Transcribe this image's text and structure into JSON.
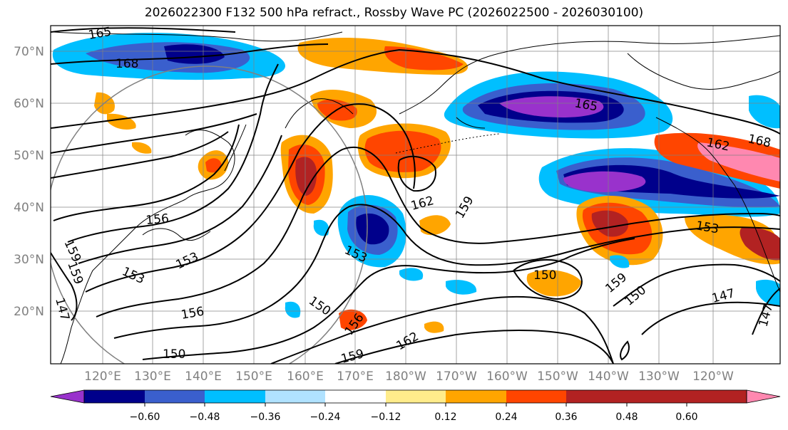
{
  "title": "2026022300 F132 500 hPa refract., Rossby Wave PC (2026022500 - 2026030100)",
  "map": {
    "lat_labels": [
      "70°N",
      "60°N",
      "50°N",
      "40°N",
      "30°N",
      "20°N"
    ],
    "lon_labels": [
      "120°E",
      "130°E",
      "140°E",
      "150°E",
      "160°E",
      "170°E",
      "180°W",
      "170°W",
      "160°W",
      "150°W",
      "140°W",
      "130°W",
      "120°W"
    ],
    "contour_labels": [
      "165",
      "168",
      "165",
      "162",
      "168",
      "162",
      "159",
      "156",
      "153",
      "159",
      "153",
      "153",
      "150",
      "159",
      "150",
      "147",
      "147",
      "150",
      "156",
      "162",
      "159",
      "150",
      "156",
      "153",
      "159",
      "147"
    ]
  },
  "colorbar": {
    "ticks": [
      "−0.60",
      "−0.48",
      "−0.36",
      "−0.24",
      "−0.12",
      "0.12",
      "0.24",
      "0.36",
      "0.48",
      "0.60"
    ],
    "colors": [
      "#9932cc",
      "#00008b",
      "#3a5fcd",
      "#00bfff",
      "#b0e2ff",
      "#ffffff",
      "#ffec8b",
      "#ffa500",
      "#ff4500",
      "#b22222",
      "#ff88b0"
    ]
  }
}
